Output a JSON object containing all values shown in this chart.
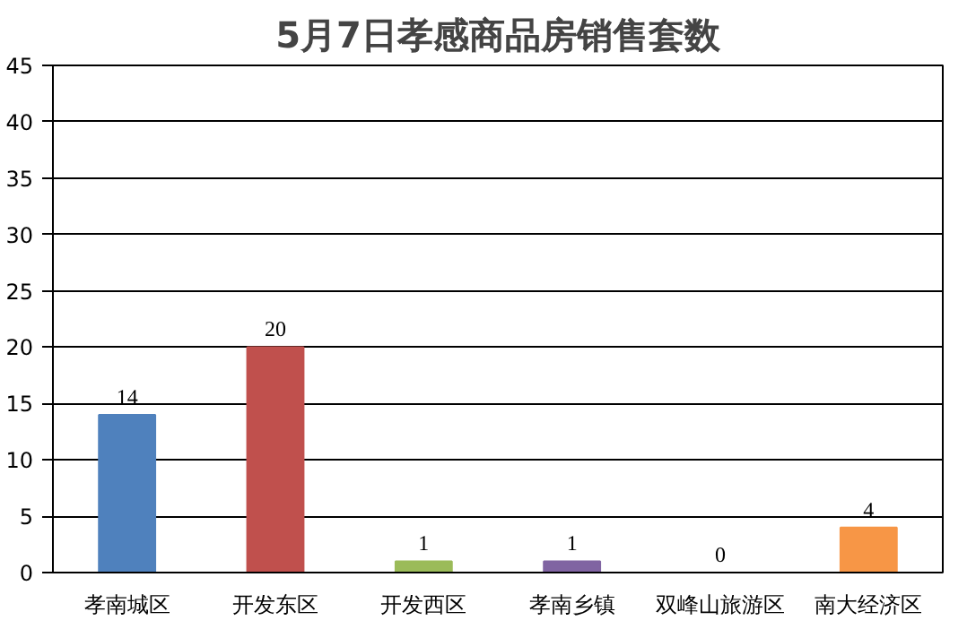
{
  "chart_data": {
    "type": "bar",
    "title": "5月7日孝感商品房销售套数",
    "categories": [
      "孝南城区",
      "开发东区",
      "开发西区",
      "孝南乡镇",
      "双峰山旅游区",
      "南大经济区"
    ],
    "values": [
      14,
      20,
      1,
      1,
      0,
      4
    ],
    "colors": [
      "#4f81bd",
      "#c0504d",
      "#9bbb59",
      "#8064a2",
      "#4bacc6",
      "#f79646"
    ],
    "ylim": [
      0,
      45
    ],
    "yticks": [
      0,
      5,
      10,
      15,
      20,
      25,
      30,
      35,
      40,
      45
    ],
    "grid": "y",
    "data_labels": true
  }
}
